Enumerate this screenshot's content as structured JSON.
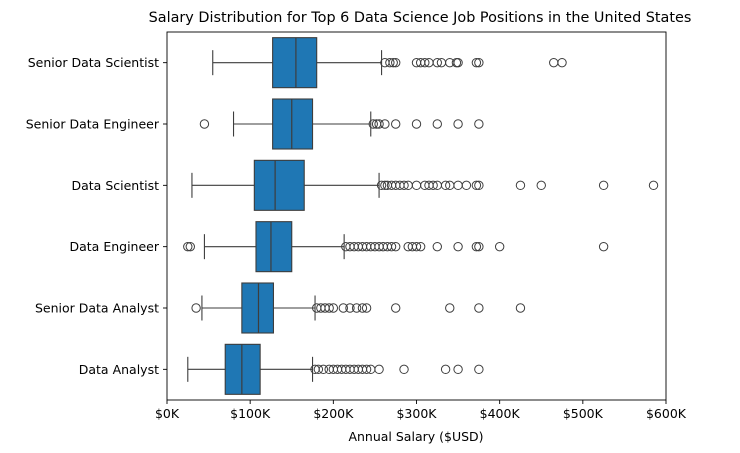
{
  "chart_data": {
    "type": "boxplot",
    "orientation": "horizontal",
    "title": "Salary Distribution for Top 6 Data Science Job Positions in the United States",
    "xlabel": "Annual Salary ($USD)",
    "ylabel": "",
    "xlim": [
      0,
      600000
    ],
    "x_ticks": [
      0,
      100000,
      200000,
      300000,
      400000,
      500000,
      600000
    ],
    "x_tick_labels": [
      "$0K",
      "$100K",
      "$200K",
      "$300K",
      "$400K",
      "$500K",
      "$600K"
    ],
    "grid": false,
    "legend": "none",
    "box_color": "#1f77b4",
    "line_color": "#3d3d3d",
    "categories": [
      "Senior Data Scientist",
      "Senior Data Engineer",
      "Data Scientist",
      "Data Engineer",
      "Senior Data Analyst",
      "Data Analyst"
    ],
    "boxes": [
      {
        "category": "Senior Data Scientist",
        "whisker_low": 55000,
        "q1": 127000,
        "median": 155000,
        "q3": 180000,
        "whisker_high": 258000,
        "outliers": [
          262000,
          268000,
          272000,
          275000,
          300000,
          305000,
          310000,
          315000,
          325000,
          330000,
          340000,
          348000,
          350000,
          372000,
          375000,
          465000,
          475000
        ]
      },
      {
        "category": "Senior Data Engineer",
        "whisker_low": 80000,
        "q1": 127000,
        "median": 150000,
        "q3": 175000,
        "whisker_high": 245000,
        "outliers": [
          45000,
          248000,
          252000,
          255000,
          262000,
          275000,
          300000,
          325000,
          350000,
          375000
        ]
      },
      {
        "category": "Data Scientist",
        "whisker_low": 30000,
        "q1": 105000,
        "median": 130000,
        "q3": 165000,
        "whisker_high": 255000,
        "outliers": [
          258000,
          262000,
          265000,
          270000,
          275000,
          280000,
          285000,
          290000,
          300000,
          310000,
          315000,
          320000,
          325000,
          335000,
          340000,
          350000,
          360000,
          372000,
          375000,
          425000,
          450000,
          525000,
          585000
        ]
      },
      {
        "category": "Data Engineer",
        "whisker_low": 45000,
        "q1": 107000,
        "median": 125000,
        "q3": 150000,
        "whisker_high": 213000,
        "outliers": [
          25000,
          28000,
          215000,
          220000,
          225000,
          230000,
          235000,
          240000,
          245000,
          250000,
          255000,
          260000,
          265000,
          270000,
          275000,
          290000,
          295000,
          300000,
          305000,
          325000,
          350000,
          372000,
          375000,
          400000,
          525000
        ]
      },
      {
        "category": "Senior Data Analyst",
        "whisker_low": 42000,
        "q1": 90000,
        "median": 110000,
        "q3": 128000,
        "whisker_high": 178000,
        "outliers": [
          35000,
          180000,
          185000,
          190000,
          195000,
          200000,
          212000,
          220000,
          228000,
          235000,
          240000,
          275000,
          340000,
          375000,
          425000
        ]
      },
      {
        "category": "Data Analyst",
        "whisker_low": 25000,
        "q1": 70000,
        "median": 90000,
        "q3": 112000,
        "whisker_high": 175000,
        "outliers": [
          178000,
          182000,
          188000,
          195000,
          200000,
          205000,
          210000,
          215000,
          220000,
          225000,
          230000,
          235000,
          240000,
          245000,
          255000,
          285000,
          335000,
          350000,
          375000
        ]
      }
    ]
  }
}
